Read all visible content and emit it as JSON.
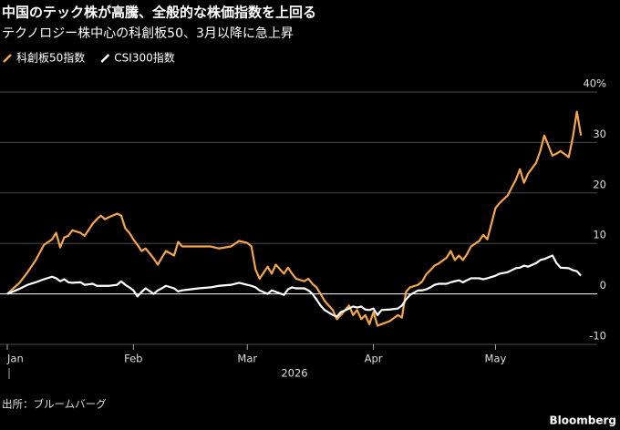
{
  "chart_data": {
    "type": "line",
    "title": "中国のテック株が高騰、全般的な株価指数を上回る",
    "subtitle": "テクノロジー株中心の科創板50、3月以降に急上昇",
    "xlabel": "2026",
    "source": "出所：ブルームバーグ",
    "logo": "Bloomberg",
    "x": [
      1,
      4,
      6,
      8,
      10,
      12,
      13,
      14,
      15,
      16,
      17,
      19,
      20,
      22,
      23,
      24,
      25,
      26,
      28,
      29,
      30,
      31,
      32,
      33,
      34,
      35,
      37,
      38,
      39,
      40,
      42,
      43,
      44,
      46,
      48,
      51,
      53,
      56,
      58,
      60,
      61,
      62,
      63,
      65,
      66,
      67,
      69,
      70,
      71,
      72,
      74,
      75,
      76,
      77,
      78,
      79,
      81,
      82,
      83,
      85,
      86,
      87,
      88,
      89,
      90,
      91,
      92,
      93,
      95,
      97,
      98,
      99,
      100,
      102,
      103,
      104,
      105,
      106,
      107,
      109,
      110,
      111,
      112,
      113,
      114,
      115,
      117,
      118,
      119,
      121,
      122,
      124,
      125,
      126,
      127,
      128,
      129,
      131,
      132,
      133,
      135,
      136,
      137,
      139,
      140,
      141,
      142
    ],
    "series": [
      {
        "name": "科創板50指数",
        "color": "#f5a54a",
        "values": [
          0,
          2.2,
          4.3,
          6.7,
          9.7,
          10.8,
          12.1,
          9.2,
          11.2,
          11.5,
          12.6,
          12.1,
          11.5,
          13.9,
          14.8,
          15.5,
          14.8,
          15.2,
          15.9,
          15.5,
          13,
          12.1,
          10.8,
          9.7,
          8.5,
          9,
          7,
          5.8,
          7.2,
          8.5,
          7.6,
          10.3,
          9.4,
          9.4,
          9.4,
          9.4,
          9,
          9.4,
          10.5,
          10.1,
          9.4,
          4.9,
          3,
          5.4,
          4,
          5.8,
          4,
          5.2,
          4,
          3,
          2.5,
          3,
          2,
          1.3,
          0,
          -1.4,
          -3.2,
          -5,
          -4.2,
          -2.3,
          -4.2,
          -3.2,
          -5,
          -4.2,
          -6,
          -3.6,
          -6.3,
          -6,
          -5.4,
          -4.2,
          -4.7,
          0.4,
          1.3,
          1.8,
          2.5,
          3.9,
          4.7,
          5.6,
          6,
          7.2,
          8.5,
          6.7,
          7.6,
          6.7,
          7.9,
          9.4,
          10.5,
          11.7,
          10.8,
          17,
          18,
          19.5,
          21.1,
          22.6,
          24.7,
          22,
          23.8,
          26,
          28.3,
          31.4,
          27.4,
          27.8,
          28.3,
          27.1,
          31,
          36.1,
          31.4
        ]
      },
      {
        "name": "CSI300指数",
        "color": "#ffffff",
        "values": [
          0,
          1,
          1.8,
          2.3,
          2.9,
          3.4,
          3.1,
          2.5,
          2.9,
          2.3,
          2.2,
          2.3,
          1.8,
          2,
          1.6,
          1.6,
          1.6,
          1.6,
          1.8,
          2.5,
          1.8,
          1.3,
          0.7,
          -0.5,
          0.4,
          1.1,
          0,
          0.7,
          1.1,
          1.6,
          1.1,
          0.5,
          0.7,
          0.9,
          1.1,
          1.3,
          1.6,
          1.8,
          2.2,
          1.8,
          1.6,
          1.3,
          0.7,
          0,
          0.7,
          0.4,
          -0.2,
          0.9,
          1.3,
          1.1,
          1.1,
          0.7,
          0,
          -1.1,
          -2.3,
          -3.2,
          -4.2,
          -4.5,
          -3.6,
          -2.9,
          -2.5,
          -2.7,
          -2.5,
          -3.1,
          -3.2,
          -2.9,
          -4.2,
          -3.2,
          -3.1,
          -2.9,
          -2.3,
          -1.1,
          -0.2,
          0.7,
          0.7,
          0.9,
          1.3,
          1.8,
          2,
          2,
          2.3,
          2.5,
          2.7,
          2.3,
          2.7,
          3.1,
          3.1,
          2.9,
          3.1,
          3.6,
          4,
          4.3,
          4.7,
          5.1,
          5.2,
          5.6,
          5.4,
          6.1,
          6.7,
          6.9,
          7.6,
          6.1,
          5.2,
          5.1,
          4.7,
          4.5,
          3.6
        ]
      }
    ],
    "xlim": [
      1,
      146
    ],
    "xticks": [
      {
        "value": 1,
        "label": "Jan"
      },
      {
        "value": 32,
        "label": "Feb"
      },
      {
        "value": 60,
        "label": "Mar"
      },
      {
        "value": 91,
        "label": "Apr"
      },
      {
        "value": 121,
        "label": "May"
      }
    ],
    "ylim": [
      -10,
      40
    ],
    "yticks": [
      -10,
      0,
      10,
      20,
      30,
      {
        "value": 40,
        "label": "40%"
      }
    ],
    "grid": true
  }
}
